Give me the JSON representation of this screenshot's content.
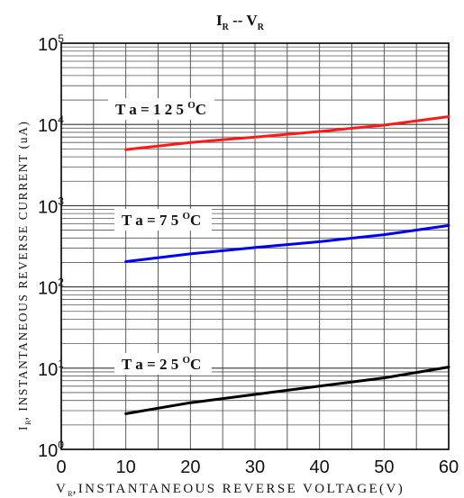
{
  "chart_data": {
    "type": "line",
    "title": {
      "main_a": "I",
      "sub_a": "R",
      "sep": " -- ",
      "main_b": "V",
      "sub_b": "R"
    },
    "xlabel": {
      "sub": "R",
      "text": ",INSTANTANEOUS REVERSE VOLTAGE(V)",
      "prefix": "V"
    },
    "ylabel": {
      "sub": "R",
      "text": ", INSTANTANEOUS REVERSE CURRENT (uA)",
      "prefix": "I"
    },
    "xlim": [
      0,
      60
    ],
    "ylim": [
      1,
      100000
    ],
    "y_scale": "log",
    "grid": true,
    "x_ticks": [
      0,
      10,
      20,
      30,
      40,
      50,
      60
    ],
    "x_tick_labels": [
      "0",
      "10",
      "20",
      "30",
      "40",
      "50",
      "60"
    ],
    "y_tick_labels": [
      {
        "base": "10",
        "exp": "0"
      },
      {
        "base": "10",
        "exp": "1"
      },
      {
        "base": "10",
        "exp": "2"
      },
      {
        "base": "10",
        "exp": "3"
      },
      {
        "base": "10",
        "exp": "4"
      },
      {
        "base": "10",
        "exp": "5"
      }
    ],
    "series": [
      {
        "label": "T a = 1 2 5 °C",
        "label_main": "T a = 1 2 5 ",
        "label_sup": "O",
        "label_tail": "C",
        "color": "#ff1a1a",
        "x": [
          10,
          20,
          30,
          40,
          50,
          60
        ],
        "y": [
          4900,
          6000,
          7000,
          8200,
          9800,
          12500
        ]
      },
      {
        "label": "T a = 7 5 °C",
        "label_main": "T a = 7 5 ",
        "label_sup": "O",
        "label_tail": "C",
        "color": "#0000ee",
        "x": [
          10,
          20,
          30,
          40,
          50,
          60
        ],
        "y": [
          205,
          255,
          305,
          360,
          440,
          570
        ]
      },
      {
        "label": "T a = 2 5 °C",
        "label_main": "T a =  2 5 ",
        "label_sup": "O",
        "label_tail": "C",
        "color": "#000000",
        "x": [
          10,
          20,
          30,
          40,
          50,
          60
        ],
        "y": [
          2.75,
          3.75,
          4.75,
          6.0,
          7.6,
          10.3
        ]
      }
    ]
  }
}
